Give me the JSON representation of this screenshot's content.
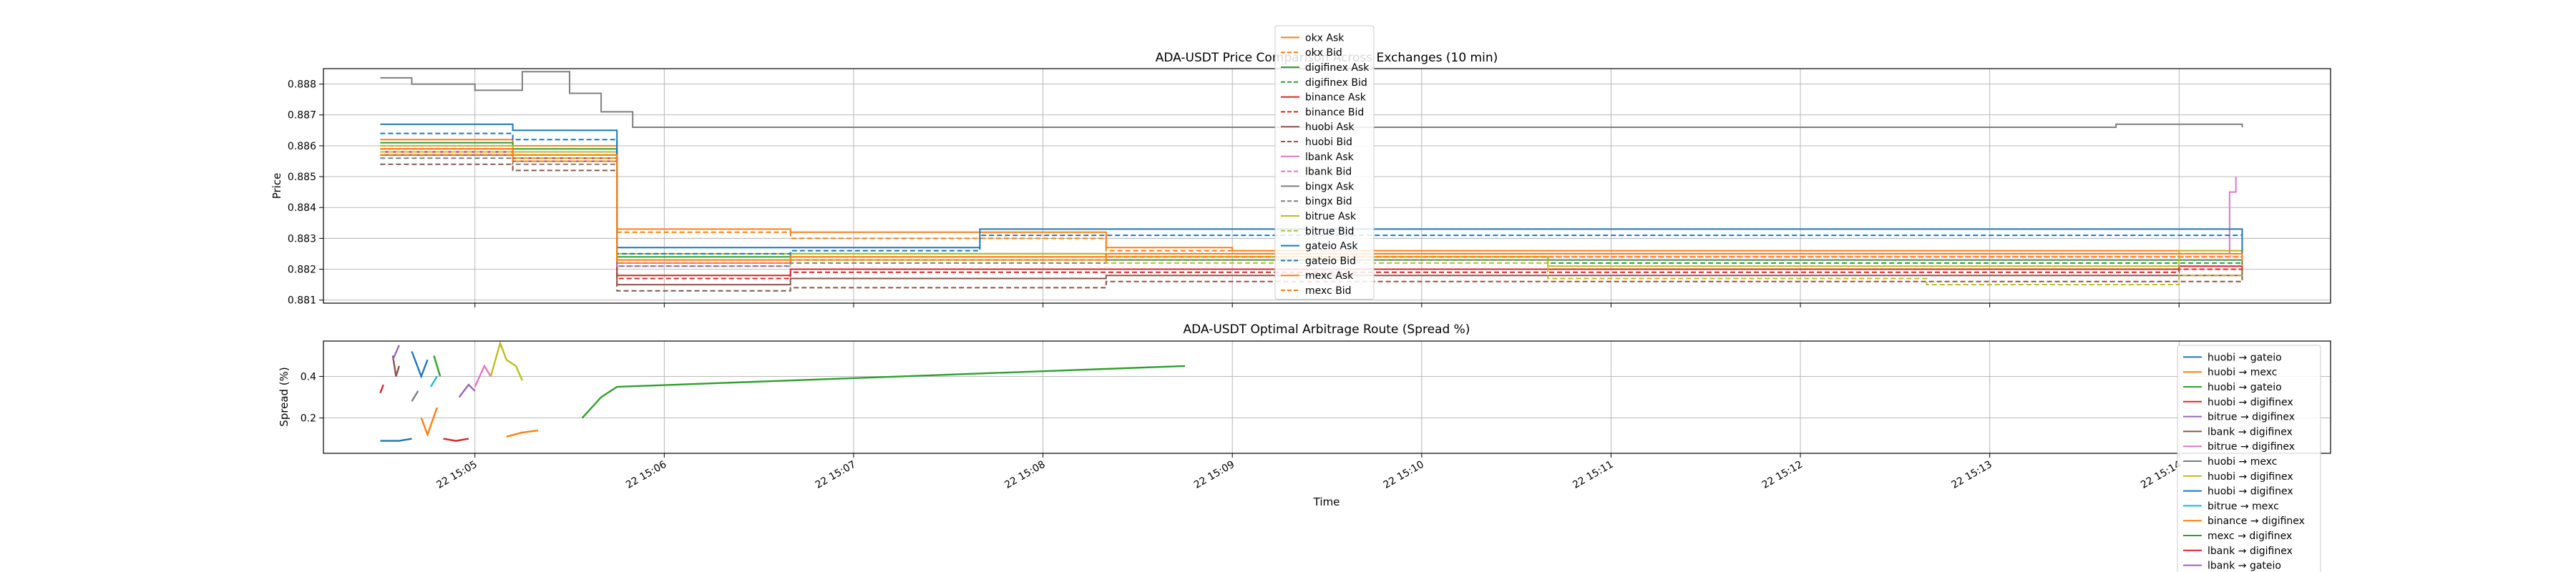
{
  "colors": {
    "okx": "#ff7f0e",
    "digifinex": "#2ca02c",
    "binance": "#d62728",
    "huobi": "#8c564b",
    "lbank": "#e377c2",
    "bingx": "#7f7f7f",
    "bitrue": "#bcbd22",
    "gateio": "#1f77b4",
    "mexc": "#ff7f0e",
    "grid": "#b0b0b0"
  },
  "x_tick_labels": [
    "22 15:05",
    "22 15:06",
    "22 15:07",
    "22 15:08",
    "22 15:09",
    "22 15:10",
    "22 15:11",
    "22 15:12",
    "22 15:13",
    "22 15:14"
  ],
  "chart_data": [
    {
      "type": "line",
      "title": "ADA-USDT Price Comparison Across Exchanges (10 min)",
      "xlabel": "",
      "ylabel": "Price",
      "ylim": [
        0.8809,
        0.8885
      ],
      "xlim": [
        "2025-xx-22 15:04:12",
        "2025-xx-22 15:14:48"
      ],
      "y_ticks": [
        "0.881",
        "0.882",
        "0.883",
        "0.884",
        "0.885",
        "0.886",
        "0.887",
        "0.888"
      ],
      "grid": true,
      "legend_position": "upper-center",
      "series": [
        {
          "name": "okx Ask",
          "style": "solid",
          "color": "#ff7f0e",
          "x": [
            "15:04:30",
            "15:05:12",
            "15:05:30",
            "15:05:45",
            "15:06:40",
            "15:08:20",
            "15:09:00",
            "15:10:00",
            "15:11:00",
            "15:12:00",
            "15:13:00",
            "15:14:00",
            "15:14:20"
          ],
          "y": [
            0.8862,
            0.886,
            0.886,
            0.8833,
            0.8832,
            0.8827,
            0.8826,
            0.8826,
            0.8826,
            0.8826,
            0.8826,
            0.8826,
            0.8823
          ]
        },
        {
          "name": "okx Bid",
          "style": "dashed",
          "color": "#ff7f0e",
          "x": [
            "15:04:30",
            "15:05:12",
            "15:05:30",
            "15:05:45",
            "15:06:40",
            "15:08:20",
            "15:09:00",
            "15:10:00",
            "15:11:00",
            "15:12:00",
            "15:13:00",
            "15:14:00",
            "15:14:20"
          ],
          "y": [
            0.886,
            0.8858,
            0.8858,
            0.8832,
            0.883,
            0.8826,
            0.8825,
            0.8825,
            0.8825,
            0.8825,
            0.8825,
            0.8825,
            0.882
          ]
        },
        {
          "name": "digifinex Ask",
          "style": "solid",
          "color": "#2ca02c",
          "x": [
            "15:04:30",
            "15:05:12",
            "15:05:30",
            "15:05:45",
            "15:06:40",
            "15:08:20",
            "15:10:40",
            "15:14:00",
            "15:14:20"
          ],
          "y": [
            0.8861,
            0.8859,
            0.8859,
            0.8824,
            0.8825,
            0.8824,
            0.8823,
            0.8823,
            0.8821
          ]
        },
        {
          "name": "digifinex Bid",
          "style": "dashed",
          "color": "#2ca02c",
          "x": [
            "15:04:30",
            "15:05:12",
            "15:05:30",
            "15:05:45",
            "15:06:40",
            "15:08:20",
            "15:10:40",
            "15:14:00",
            "15:14:20"
          ],
          "y": [
            0.8859,
            0.8857,
            0.8857,
            0.8822,
            0.8823,
            0.8823,
            0.8822,
            0.8822,
            0.882
          ]
        },
        {
          "name": "binance Ask",
          "style": "solid",
          "color": "#d62728",
          "x": [
            "15:04:30",
            "15:05:12",
            "15:05:30",
            "15:05:45",
            "15:06:40",
            "15:08:20",
            "15:10:00",
            "15:14:00",
            "15:14:20"
          ],
          "y": [
            0.8858,
            0.8856,
            0.8856,
            0.8818,
            0.882,
            0.882,
            0.882,
            0.8821,
            0.8823
          ]
        },
        {
          "name": "binance Bid",
          "style": "dashed",
          "color": "#d62728",
          "x": [
            "15:04:30",
            "15:05:12",
            "15:05:30",
            "15:05:45",
            "15:06:40",
            "15:08:20",
            "15:10:00",
            "15:14:00",
            "15:14:20"
          ],
          "y": [
            0.8857,
            0.8855,
            0.8855,
            0.8817,
            0.8819,
            0.8819,
            0.8819,
            0.882,
            0.8822
          ]
        },
        {
          "name": "huobi Ask",
          "style": "solid",
          "color": "#8c564b",
          "x": [
            "15:04:30",
            "15:05:12",
            "15:05:30",
            "15:05:45",
            "15:06:40",
            "15:08:20",
            "15:10:00",
            "15:14:00",
            "15:14:20"
          ],
          "y": [
            0.8857,
            0.8855,
            0.8855,
            0.8815,
            0.8817,
            0.8818,
            0.8818,
            0.8818,
            0.882
          ]
        },
        {
          "name": "huobi Bid",
          "style": "dashed",
          "color": "#8c564b",
          "x": [
            "15:04:30",
            "15:05:12",
            "15:05:30",
            "15:05:45",
            "15:06:40",
            "15:08:20",
            "15:10:00",
            "15:14:00",
            "15:14:20"
          ],
          "y": [
            0.8854,
            0.8852,
            0.8852,
            0.8813,
            0.8814,
            0.8816,
            0.8816,
            0.8816,
            0.8818
          ]
        },
        {
          "name": "lbank Ask",
          "style": "solid",
          "color": "#e377c2",
          "x": [
            "15:04:30",
            "15:05:12",
            "15:05:30",
            "15:05:45",
            "15:06:40",
            "15:08:20",
            "15:10:00",
            "15:14:00",
            "15:14:16",
            "15:14:18"
          ],
          "y": [
            0.8859,
            0.8857,
            0.8857,
            0.8822,
            0.8824,
            0.8825,
            0.8825,
            0.8825,
            0.8845,
            0.885
          ]
        },
        {
          "name": "lbank Bid",
          "style": "dashed",
          "color": "#e377c2",
          "x": [
            "15:04:30",
            "15:05:12",
            "15:05:30",
            "15:05:45",
            "15:06:40",
            "15:08:20",
            "15:10:00",
            "15:14:00",
            "15:14:20"
          ],
          "y": [
            0.8858,
            0.8856,
            0.8856,
            0.8821,
            0.8823,
            0.8824,
            0.8824,
            0.8824,
            0.8826
          ]
        },
        {
          "name": "bingx Ask",
          "style": "solid",
          "color": "#7f7f7f",
          "x": [
            "15:04:30",
            "15:04:40",
            "15:05:00",
            "15:05:10",
            "15:05:15",
            "15:05:30",
            "15:05:40",
            "15:05:50",
            "15:10:00",
            "15:12:40",
            "15:13:40",
            "15:14:10",
            "15:14:20"
          ],
          "y": [
            0.8882,
            0.888,
            0.8878,
            0.8878,
            0.8884,
            0.8877,
            0.8871,
            0.8866,
            0.8866,
            0.8866,
            0.8867,
            0.8867,
            0.8866
          ]
        },
        {
          "name": "bingx Bid",
          "style": "dashed",
          "color": "#7f7f7f",
          "x": [
            "15:04:30",
            "15:05:12",
            "15:05:30",
            "15:05:45",
            "15:06:40",
            "15:08:20",
            "15:10:00",
            "15:14:00",
            "15:14:20"
          ],
          "y": [
            0.8856,
            0.8854,
            0.8854,
            0.8821,
            0.8822,
            0.8823,
            0.8823,
            0.8823,
            0.8822
          ]
        },
        {
          "name": "bitrue Ask",
          "style": "solid",
          "color": "#bcbd22",
          "x": [
            "15:04:30",
            "15:05:12",
            "15:05:30",
            "15:05:45",
            "15:06:40",
            "15:08:20",
            "15:10:40",
            "15:12:40",
            "15:14:00",
            "15:14:20"
          ],
          "y": [
            0.886,
            0.8858,
            0.8858,
            0.8825,
            0.8825,
            0.8824,
            0.8821,
            0.8821,
            0.8826,
            0.8822
          ]
        },
        {
          "name": "bitrue Bid",
          "style": "dashed",
          "color": "#bcbd22",
          "x": [
            "15:04:30",
            "15:05:12",
            "15:05:30",
            "15:05:45",
            "15:06:40",
            "15:08:20",
            "15:10:40",
            "15:12:40",
            "15:14:00",
            "15:14:20"
          ],
          "y": [
            0.8858,
            0.8856,
            0.8856,
            0.8823,
            0.8823,
            0.8822,
            0.8817,
            0.8815,
            0.8818,
            0.8819
          ]
        },
        {
          "name": "gateio Ask",
          "style": "solid",
          "color": "#1f77b4",
          "x": [
            "15:04:30",
            "15:05:12",
            "15:05:30",
            "15:05:45",
            "15:06:40",
            "15:07:40",
            "15:10:00",
            "15:14:00",
            "15:14:20"
          ],
          "y": [
            0.8867,
            0.8865,
            0.8865,
            0.8827,
            0.8827,
            0.8833,
            0.8833,
            0.8833,
            0.8822
          ]
        },
        {
          "name": "gateio Bid",
          "style": "dashed",
          "color": "#1f77b4",
          "x": [
            "15:04:30",
            "15:05:12",
            "15:05:30",
            "15:05:45",
            "15:06:40",
            "15:07:40",
            "15:10:00",
            "15:14:00",
            "15:14:20"
          ],
          "y": [
            0.8864,
            0.8862,
            0.8862,
            0.8825,
            0.8826,
            0.8831,
            0.8831,
            0.8831,
            0.8821
          ]
        },
        {
          "name": "mexc Ask",
          "style": "solid",
          "color": "#ff7f0e",
          "x": [
            "15:04:30",
            "15:05:12",
            "15:05:30",
            "15:05:45",
            "15:06:40",
            "15:08:20",
            "15:10:00",
            "15:14:00",
            "15:14:20"
          ],
          "y": [
            0.8859,
            0.8857,
            0.8857,
            0.8823,
            0.8824,
            0.8825,
            0.8825,
            0.8825,
            0.8823
          ]
        },
        {
          "name": "mexc Bid",
          "style": "dashed",
          "color": "#ff7f0e",
          "x": [
            "15:04:30",
            "15:05:12",
            "15:05:30",
            "15:05:45",
            "15:06:40",
            "15:08:20",
            "15:10:00",
            "15:14:00",
            "15:14:20"
          ],
          "y": [
            0.8857,
            0.8855,
            0.8855,
            0.8822,
            0.8823,
            0.8824,
            0.8824,
            0.8824,
            0.8821
          ]
        }
      ]
    },
    {
      "type": "line",
      "title": "ADA-USDT Optimal Arbitrage Route (Spread %)",
      "xlabel": "Time",
      "ylabel": "Spread (%)",
      "ylim": [
        0.03,
        0.57
      ],
      "xlim": [
        "2025-xx-22 15:04:12",
        "2025-xx-22 15:14:48"
      ],
      "y_ticks": [
        "0.2",
        "0.4"
      ],
      "grid": true,
      "legend_position": "right",
      "series": [
        {
          "name": "huobi → gateio",
          "color": "#1f77b4",
          "x": [
            "15:04:30",
            "15:04:36",
            "15:04:40"
          ],
          "y": [
            0.09,
            0.09,
            0.1
          ]
        },
        {
          "name": "huobi → mexc",
          "color": "#ff7f0e",
          "x": [
            "15:05:10",
            "15:05:15",
            "15:05:20"
          ],
          "y": [
            0.11,
            0.13,
            0.14
          ]
        },
        {
          "name": "huobi → gateio",
          "color": "#2ca02c",
          "x": [
            "15:05:34",
            "15:05:40",
            "15:05:45",
            "15:08:45"
          ],
          "y": [
            0.2,
            0.3,
            0.35,
            0.45
          ]
        },
        {
          "name": "huobi → digifinex",
          "color": "#d62728",
          "x": [
            "15:04:50",
            "15:04:54",
            "15:04:58"
          ],
          "y": [
            0.1,
            0.09,
            0.1
          ]
        },
        {
          "name": "bitrue → digifinex",
          "color": "#9467bd",
          "x": [
            "15:04:55",
            "15:04:58",
            "15:05:00"
          ],
          "y": [
            0.3,
            0.36,
            0.33
          ]
        },
        {
          "name": "lbank → digifinex",
          "color": "#8c564b",
          "x": [
            "15:04:34",
            "15:04:35",
            "15:04:36"
          ],
          "y": [
            0.5,
            0.4,
            0.45
          ]
        },
        {
          "name": "bitrue → digifinex",
          "color": "#e377c2",
          "x": [
            "15:05:00",
            "15:05:03",
            "15:05:05"
          ],
          "y": [
            0.35,
            0.45,
            0.4
          ]
        },
        {
          "name": "huobi → mexc",
          "color": "#7f7f7f",
          "x": [
            "15:04:40",
            "15:04:42"
          ],
          "y": [
            0.28,
            0.33
          ]
        },
        {
          "name": "huobi → digifinex",
          "color": "#bcbd22",
          "x": [
            "15:05:05",
            "15:05:08",
            "15:05:10",
            "15:05:13",
            "15:05:15"
          ],
          "y": [
            0.4,
            0.56,
            0.48,
            0.45,
            0.38
          ]
        },
        {
          "name": "huobi → digifinex",
          "color": "#1f77b4",
          "x": [
            "15:04:40",
            "15:04:43",
            "15:04:45"
          ],
          "y": [
            0.52,
            0.4,
            0.48
          ]
        },
        {
          "name": "bitrue → mexc",
          "color": "#17becf",
          "x": [
            "15:04:46",
            "15:04:48"
          ],
          "y": [
            0.35,
            0.4
          ]
        },
        {
          "name": "binance → digifinex",
          "color": "#ff7f0e",
          "x": [
            "15:04:43",
            "15:04:45",
            "15:04:48"
          ],
          "y": [
            0.2,
            0.12,
            0.25
          ]
        },
        {
          "name": "mexc → digifinex",
          "color": "#2ca02c",
          "x": [
            "15:04:47",
            "15:04:49"
          ],
          "y": [
            0.5,
            0.4
          ]
        },
        {
          "name": "lbank → digifinex",
          "color": "#d62728",
          "x": [
            "15:04:30",
            "15:04:31"
          ],
          "y": [
            0.32,
            0.36
          ]
        },
        {
          "name": "lbank → gateio",
          "color": "#9467bd",
          "x": [
            "15:04:34",
            "15:04:36"
          ],
          "y": [
            0.48,
            0.55
          ]
        }
      ]
    }
  ]
}
